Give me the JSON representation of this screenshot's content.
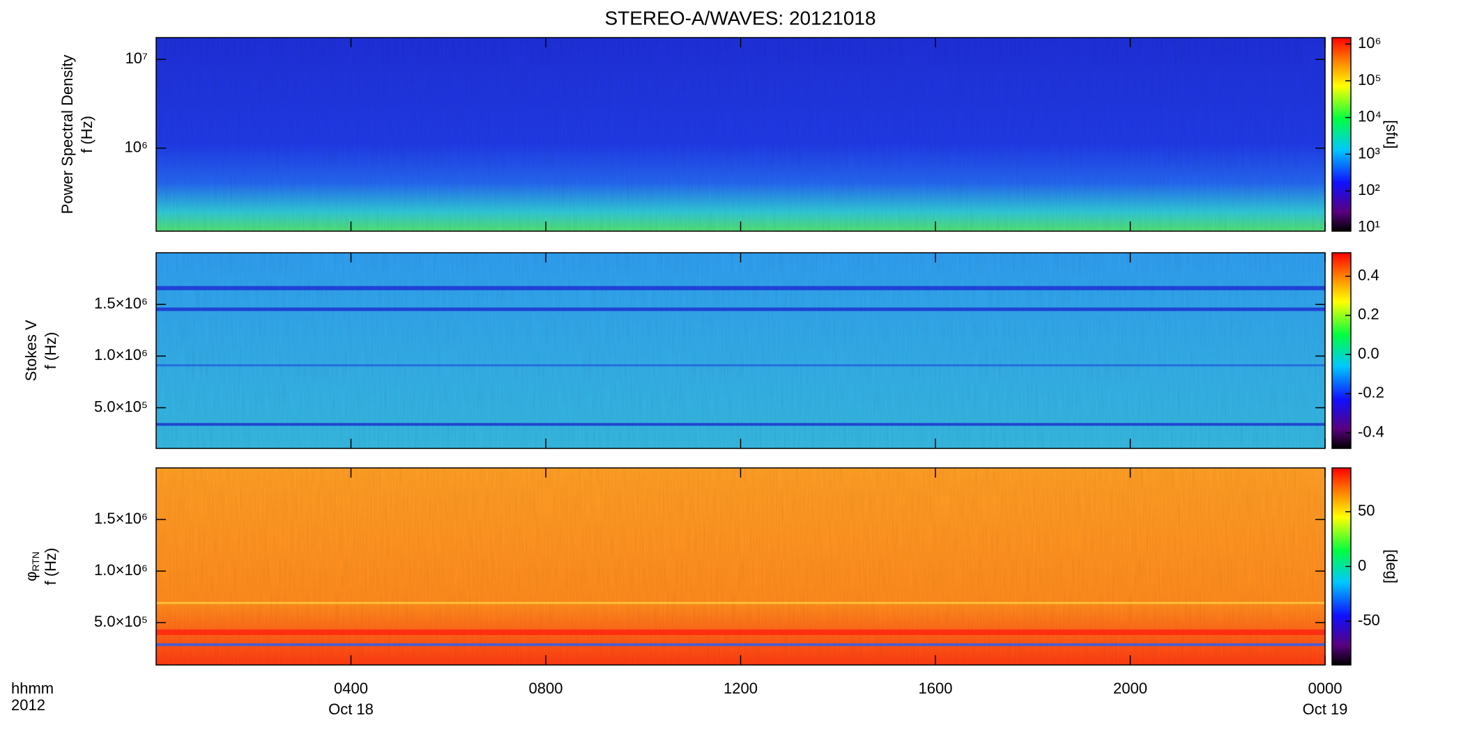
{
  "title": "STEREO-A/WAVES: 20121018",
  "x_axis": {
    "xlim": [
      0,
      24
    ],
    "xticks": [
      {
        "value": 4,
        "label": "0400"
      },
      {
        "value": 8,
        "label": "0800"
      },
      {
        "value": 12,
        "label": "1200"
      },
      {
        "value": 16,
        "label": "1600"
      },
      {
        "value": 20,
        "label": "2000"
      },
      {
        "value": 24,
        "label": "0000"
      }
    ],
    "date_labels": [
      {
        "value": 4,
        "label": "Oct 18"
      },
      {
        "value": 24,
        "label": "Oct 19"
      }
    ],
    "unit_label": "hhmm",
    "year_label": "2012"
  },
  "chart_data": [
    {
      "type": "heatmap",
      "ylabel": [
        "Power Spectral Density",
        "f (Hz)"
      ],
      "ylog": true,
      "ylim": [
        116000,
        17600000
      ],
      "yticks": [
        {
          "value": 1000000,
          "label": "10⁶"
        },
        {
          "value": 10000000,
          "label": "10⁷"
        }
      ],
      "colorbar": {
        "log": true,
        "clim": [
          8,
          1500000
        ],
        "ticks": [
          {
            "value": 10,
            "label": "10¹"
          },
          {
            "value": 100,
            "label": "10²"
          },
          {
            "value": 1000,
            "label": "10³"
          },
          {
            "value": 10000,
            "label": "10⁴"
          },
          {
            "value": 100000,
            "label": "10⁵"
          },
          {
            "value": 1000000,
            "label": "10⁶"
          }
        ],
        "label": "[sfu]"
      }
    },
    {
      "type": "heatmap",
      "ylabel": [
        "Stokes V",
        "f (Hz)"
      ],
      "ylog": false,
      "ylim": [
        106000,
        2000000
      ],
      "yticks": [
        {
          "value": 500000,
          "label": "5.0×10⁵"
        },
        {
          "value": 1000000,
          "label": "1.0×10⁶"
        },
        {
          "value": 1500000,
          "label": "1.5×10⁶"
        }
      ],
      "colorbar": {
        "log": false,
        "clim": [
          -0.48,
          0.52
        ],
        "ticks": [
          -0.4,
          -0.2,
          {
            "value": 0,
            "label": "0.0"
          },
          0.2,
          0.4
        ]
      }
    },
    {
      "type": "heatmap",
      "ylabel": [
        "φ",
        "f (Hz)"
      ],
      "ylabel_subscript": "RTN",
      "ylog": false,
      "ylim": [
        90000,
        2000000
      ],
      "yticks": [
        {
          "value": 500000,
          "label": "5.0×10⁵"
        },
        {
          "value": 1000000,
          "label": "1.0×10⁶"
        },
        {
          "value": 1500000,
          "label": "1.5×10⁶"
        }
      ],
      "colorbar": {
        "log": false,
        "clim": [
          -90,
          90
        ],
        "ticks": [
          -50,
          0,
          50
        ],
        "label": "[deg]"
      }
    }
  ]
}
